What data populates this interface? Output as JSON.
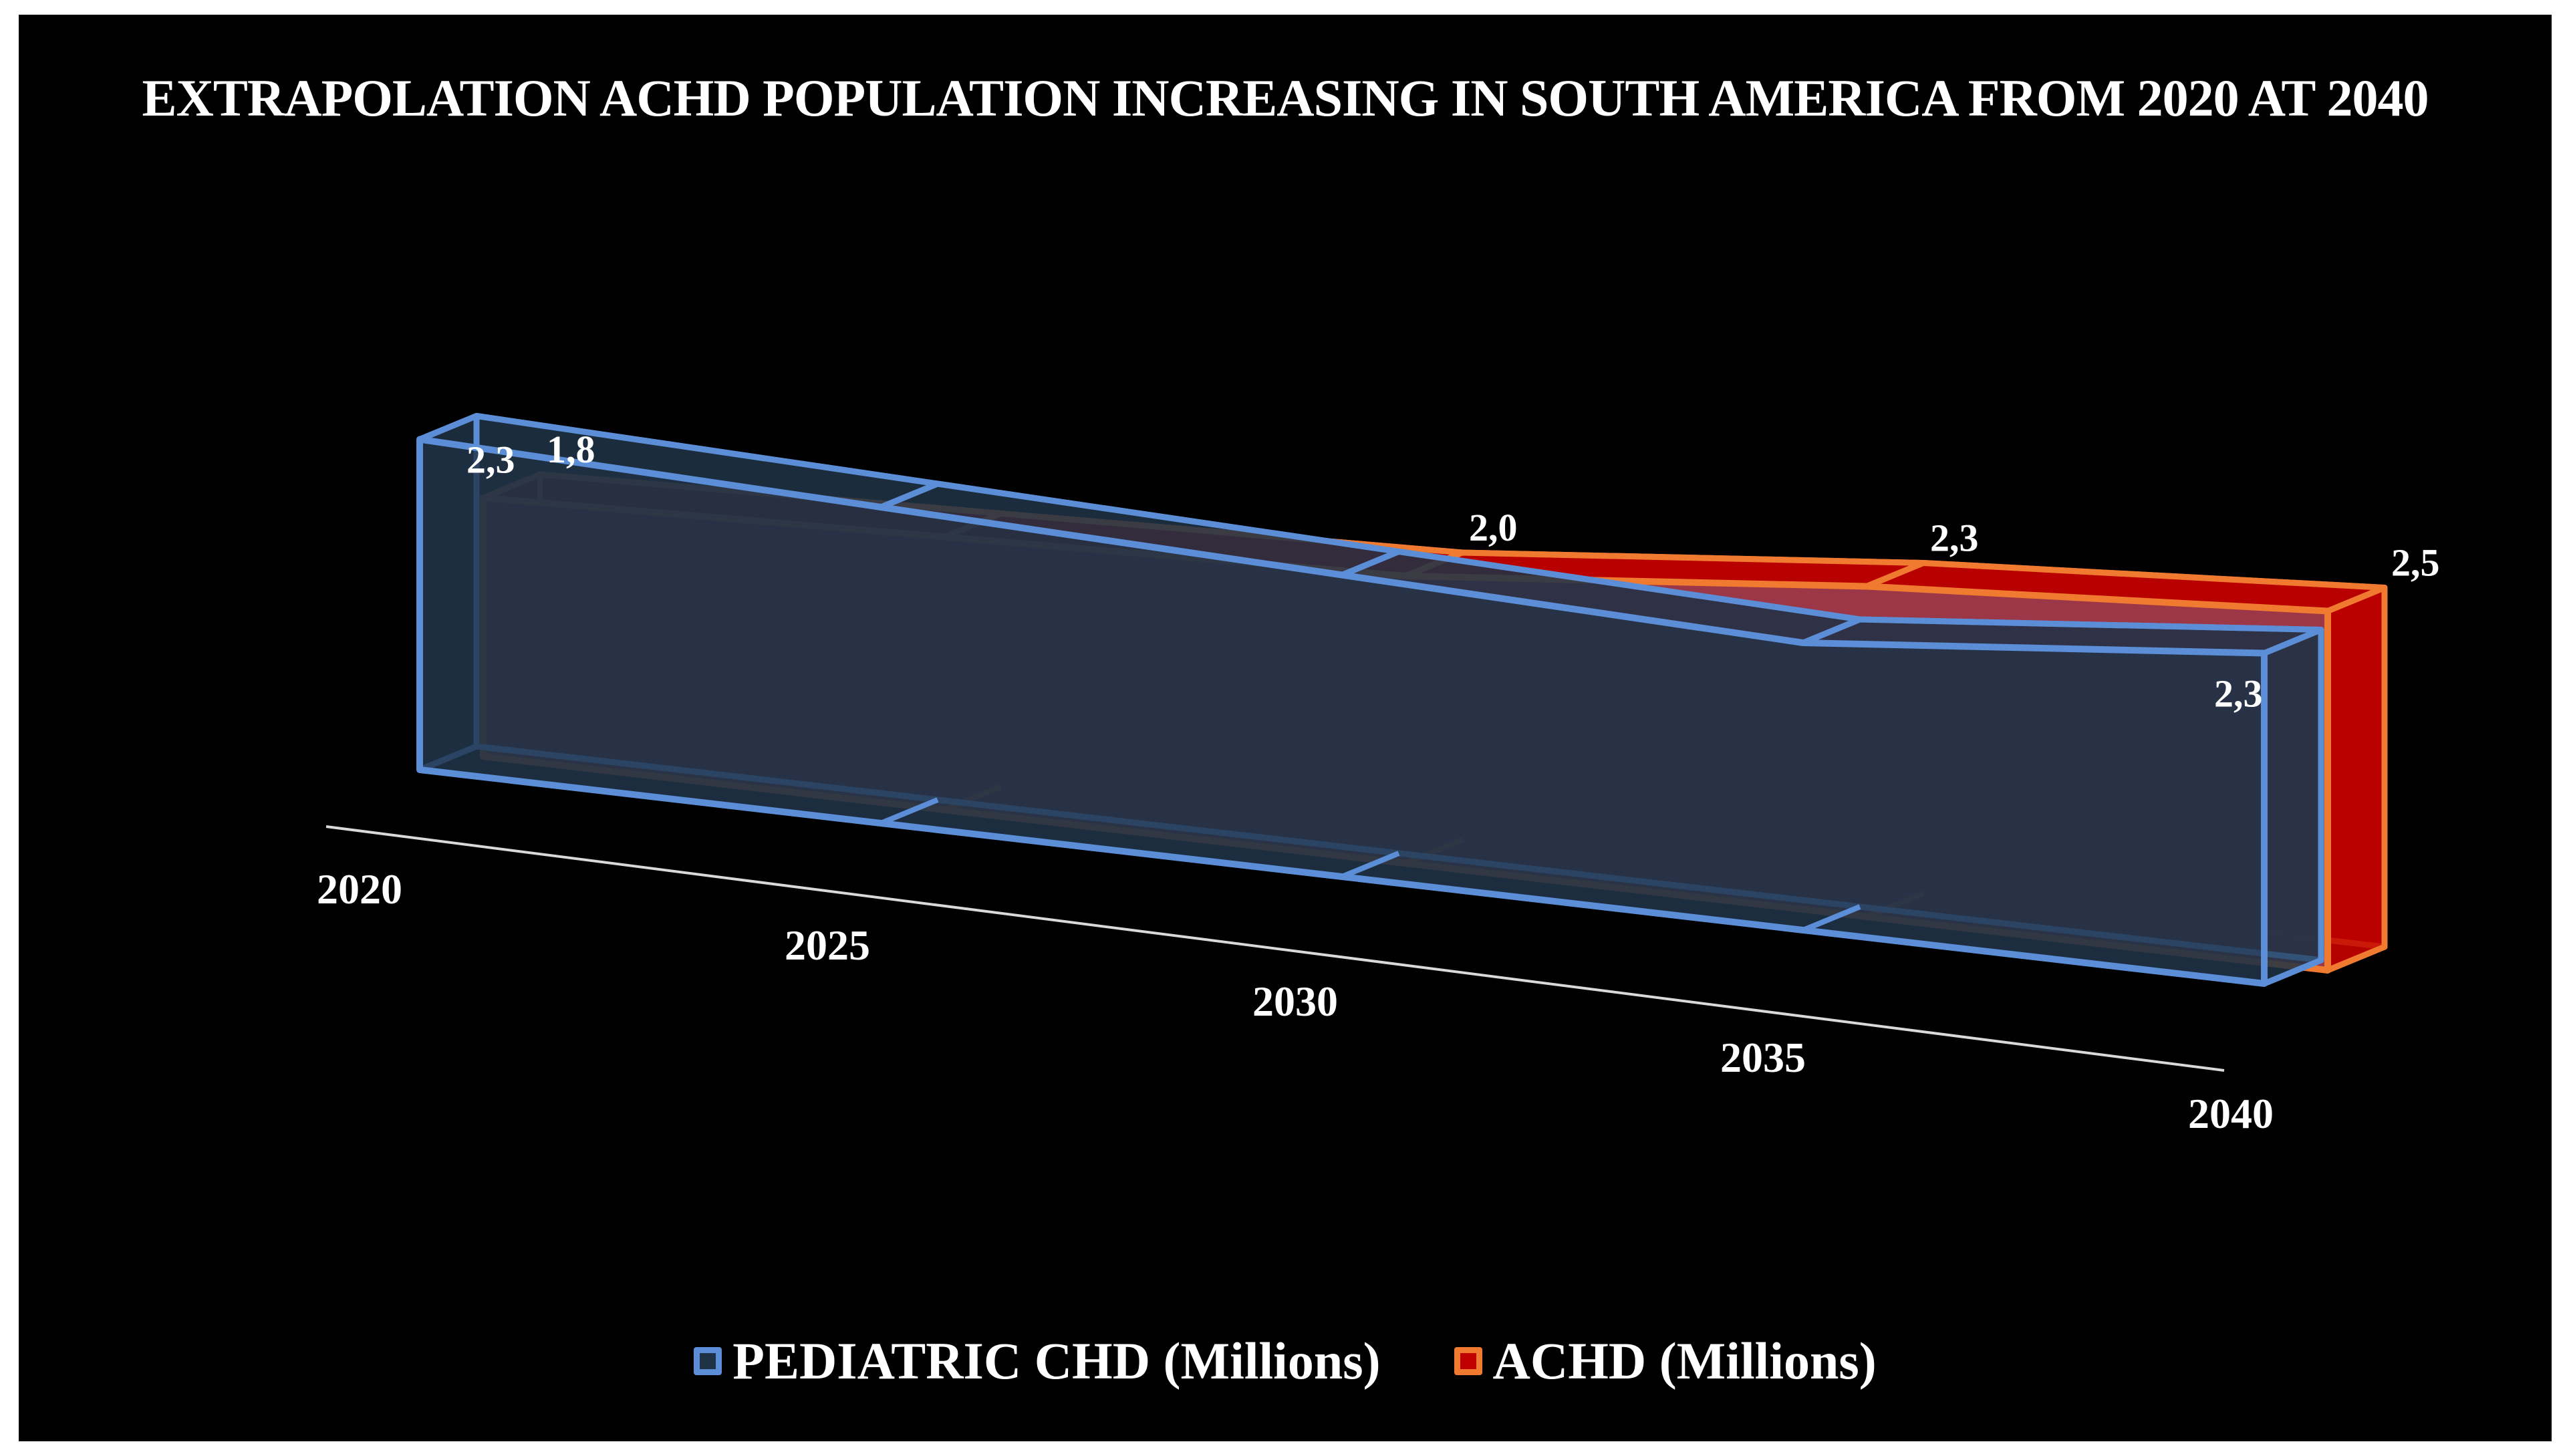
{
  "chart_data": {
    "type": "area",
    "variant": "3d-area",
    "title": "EXTRAPOLATION ACHD POPULATION  INCREASING  IN SOUTH AMERICA FROM 2020 AT 2040",
    "categories": [
      "2020",
      "2025",
      "2030",
      "2035",
      "2040"
    ],
    "series": [
      {
        "name": "PEDIATRIC CHD (Millions)",
        "values": [
          2.3,
          2.2,
          2.1,
          2.0,
          2.3
        ],
        "labels": [
          "2,3",
          "",
          "",
          "",
          "2,3"
        ],
        "fill": "#1f3246",
        "edge": "#5b8ed6"
      },
      {
        "name": "ACHD (Millions)",
        "values": [
          1.8,
          1.9,
          2.0,
          2.3,
          2.5
        ],
        "labels": [
          "1,8",
          "",
          "2,0",
          "2,3",
          "2,5"
        ],
        "fill": "#c00000",
        "edge": "#f07a30"
      }
    ],
    "ylim": [
      0,
      2.6
    ],
    "grid": false,
    "legend": "bottom"
  }
}
